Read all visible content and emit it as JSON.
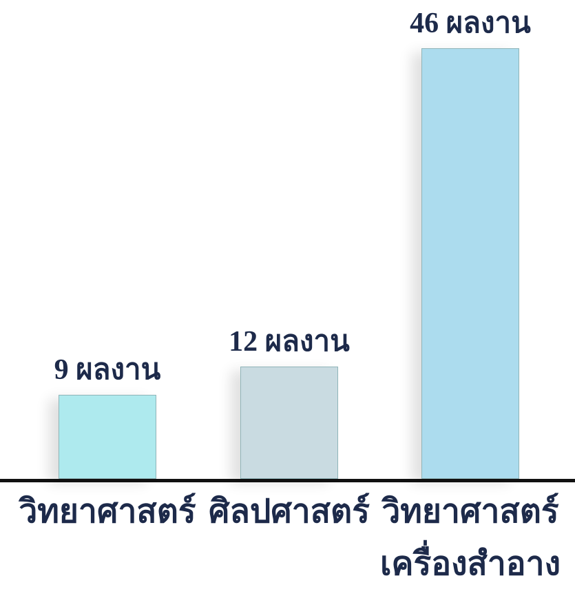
{
  "chart_data": {
    "type": "bar",
    "categories": [
      "วิทยาศาสตร์",
      "ศิลปศาสตร์",
      "วิทยาศาสตร์ เครื่องสำอาง"
    ],
    "values": [
      9,
      12,
      46
    ],
    "value_labels": [
      "9 ผลงาน",
      "12 ผลงาน",
      "46 ผลงาน"
    ],
    "colors": [
      "#aeeaee",
      "#c9dbe1",
      "#acdcee"
    ]
  }
}
